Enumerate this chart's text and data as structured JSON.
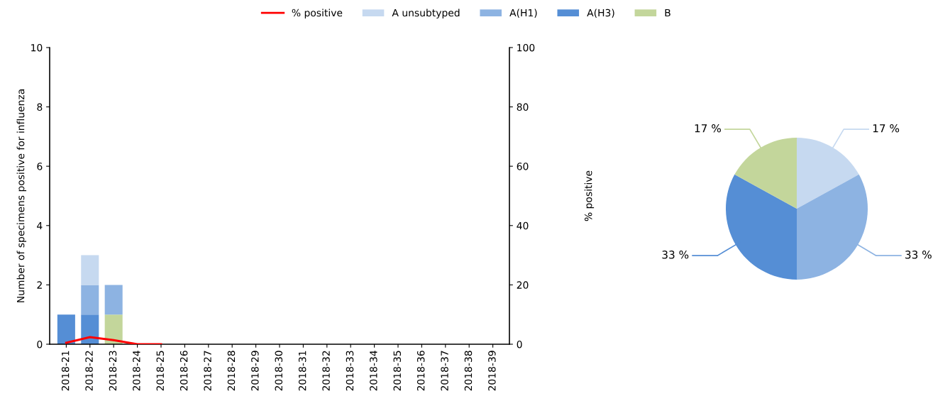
{
  "chart_data": [
    {
      "type": "bar",
      "stacked": true,
      "legend": "top",
      "grid": false,
      "categories": [
        "2018-21",
        "2018-22",
        "2018-23",
        "2018-24",
        "2018-25",
        "2018-26",
        "2018-27",
        "2018-28",
        "2018-29",
        "2018-30",
        "2018-31",
        "2018-32",
        "2018-33",
        "2018-34",
        "2018-35",
        "2018-36",
        "2018-37",
        "2018-38",
        "2018-39"
      ],
      "ylabel": "Number of specimens positive for influenza",
      "y2label": "% positive",
      "ylim": [
        0,
        10
      ],
      "yticks": [
        0,
        2,
        4,
        6,
        8,
        10
      ],
      "y2lim": [
        0,
        100
      ],
      "y2ticks": [
        0,
        20,
        40,
        60,
        80,
        100
      ],
      "series": [
        {
          "name": "% positive",
          "type": "line",
          "axis": "y2",
          "color": "#ff0000",
          "values": [
            0.5,
            2.4,
            1.4,
            0,
            0,
            null,
            null,
            null,
            null,
            null,
            null,
            null,
            null,
            null,
            null,
            null,
            null,
            null,
            null
          ]
        },
        {
          "name": "B",
          "color": "#c3d69b",
          "values": [
            0,
            0,
            1,
            0,
            0,
            0,
            0,
            0,
            0,
            0,
            0,
            0,
            0,
            0,
            0,
            0,
            0,
            0,
            0
          ]
        },
        {
          "name": "A(H3)",
          "color": "#558ed5",
          "values": [
            1,
            1,
            0,
            0,
            0,
            0,
            0,
            0,
            0,
            0,
            0,
            0,
            0,
            0,
            0,
            0,
            0,
            0,
            0
          ]
        },
        {
          "name": "A(H1)",
          "color": "#8db3e2",
          "values": [
            0,
            1,
            1,
            0,
            0,
            0,
            0,
            0,
            0,
            0,
            0,
            0,
            0,
            0,
            0,
            0,
            0,
            0,
            0
          ]
        },
        {
          "name": "A unsubtyped",
          "color": "#c6d9f0",
          "values": [
            0,
            1,
            0,
            0,
            0,
            0,
            0,
            0,
            0,
            0,
            0,
            0,
            0,
            0,
            0,
            0,
            0,
            0,
            0
          ]
        }
      ]
    },
    {
      "type": "pie",
      "categories": [
        null,
        null,
        null,
        null
      ],
      "values": [
        17,
        33,
        33,
        17
      ],
      "colors": [
        "#c6d9f0",
        "#8db3e2",
        "#558ed5",
        "#c3d69b"
      ],
      "value_labels": [
        "17 %",
        "33 %",
        "33 %",
        "17 %"
      ]
    }
  ]
}
